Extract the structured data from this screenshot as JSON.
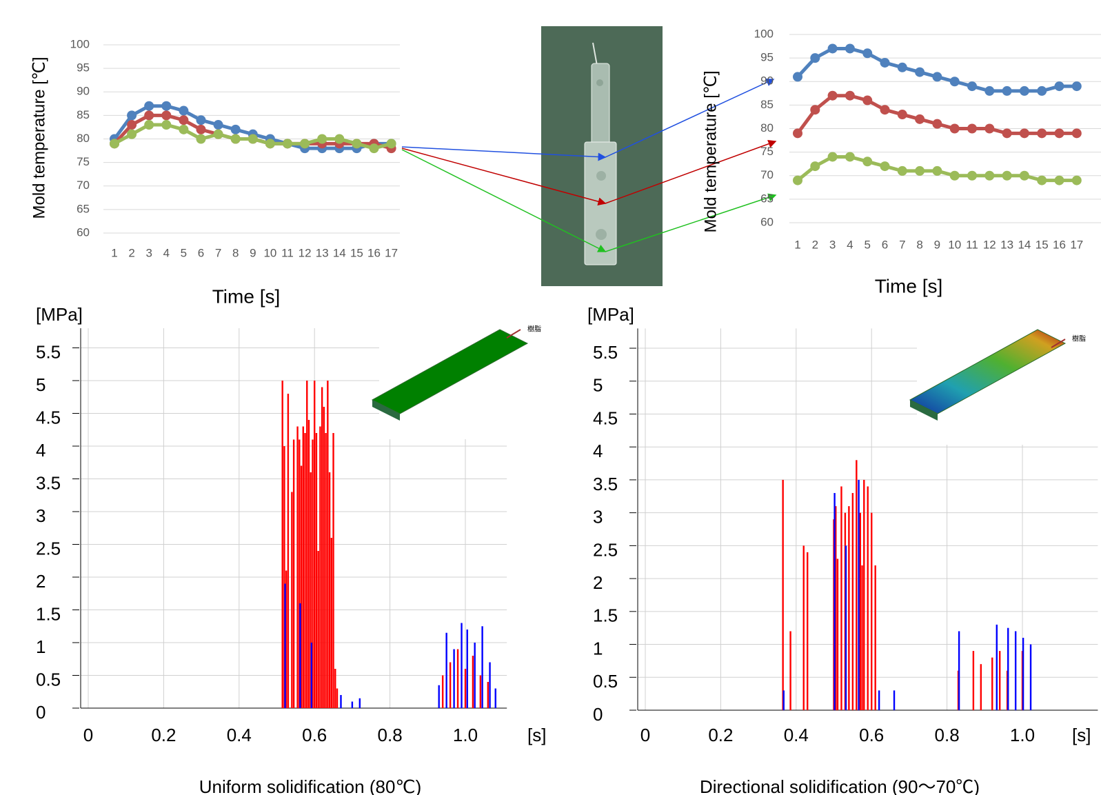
{
  "chart_data": [
    {
      "type": "line",
      "ylabel": "Mold temperature [℃]",
      "xlabel": "Time [s]",
      "categories": [
        "1",
        "2",
        "3",
        "4",
        "5",
        "6",
        "7",
        "8",
        "9",
        "10",
        "11",
        "12",
        "13",
        "14",
        "15",
        "16",
        "17"
      ],
      "ylim": [
        60,
        100
      ],
      "yticks": [
        60,
        65,
        70,
        75,
        80,
        85,
        90,
        95,
        100
      ],
      "grid": true,
      "series": [
        {
          "color": "#4f81bd",
          "values": [
            80,
            85,
            87,
            87,
            86,
            84,
            83,
            82,
            81,
            80,
            79,
            78,
            78,
            78,
            78,
            79,
            79
          ]
        },
        {
          "color": "#c0504d",
          "values": [
            79,
            83,
            85,
            85,
            84,
            82,
            81,
            80,
            80,
            79,
            79,
            79,
            79,
            79,
            79,
            79,
            78
          ]
        },
        {
          "color": "#9bbb59",
          "values": [
            79,
            81,
            83,
            83,
            82,
            80,
            81,
            80,
            80,
            79,
            79,
            79,
            80,
            80,
            79,
            78,
            79
          ]
        }
      ]
    },
    {
      "type": "line",
      "ylabel": "Mold temperature [℃]",
      "xlabel": "Time [s]",
      "categories": [
        "1",
        "2",
        "3",
        "4",
        "5",
        "6",
        "7",
        "8",
        "9",
        "10",
        "11",
        "12",
        "13",
        "14",
        "15",
        "16",
        "17"
      ],
      "ylim": [
        60,
        100
      ],
      "yticks": [
        60,
        65,
        70,
        75,
        80,
        85,
        90,
        95,
        100
      ],
      "grid": true,
      "series": [
        {
          "color": "#4f81bd",
          "values": [
            91,
            95,
            97,
            97,
            96,
            94,
            93,
            92,
            91,
            90,
            89,
            88,
            88,
            88,
            88,
            89,
            89
          ]
        },
        {
          "color": "#c0504d",
          "values": [
            79,
            84,
            87,
            87,
            86,
            84,
            83,
            82,
            81,
            80,
            80,
            80,
            79,
            79,
            79,
            79,
            79
          ]
        },
        {
          "color": "#9bbb59",
          "values": [
            69,
            72,
            74,
            74,
            73,
            72,
            71,
            71,
            71,
            70,
            70,
            70,
            70,
            70,
            69,
            69,
            69
          ]
        }
      ]
    },
    {
      "type": "spike",
      "ylabel": "[MPa]",
      "xlabel": "[s]",
      "caption": "Uniform solidification (80℃)",
      "xlim": [
        -0.02,
        1.11
      ],
      "ylim": [
        0,
        5.8
      ],
      "xticks": [
        0,
        0.2,
        0.4,
        0.6,
        0.8,
        {
          "value": 1,
          "label": "1.0"
        }
      ],
      "yticks": [
        0,
        0.5,
        1,
        1.5,
        2,
        2.5,
        3,
        3.5,
        4,
        4.5,
        5,
        5.5
      ],
      "grid": true,
      "series": [
        {
          "color": "#ff0000",
          "x": [
            0.515,
            0.52,
            0.525,
            0.53,
            0.54,
            0.545,
            0.555,
            0.56,
            0.565,
            0.57,
            0.575,
            0.58,
            0.585,
            0.59,
            0.595,
            0.6,
            0.605,
            0.61,
            0.615,
            0.62,
            0.625,
            0.63,
            0.635,
            0.64,
            0.645,
            0.65,
            0.655,
            0.66,
            0.94,
            0.96,
            0.98,
            1.0,
            1.02,
            1.04,
            1.06
          ],
          "values": [
            5.0,
            4.0,
            2.1,
            4.8,
            3.3,
            4.1,
            4.3,
            4.1,
            3.7,
            4.3,
            4.2,
            5.0,
            4.4,
            3.6,
            4.1,
            5.0,
            4.2,
            2.4,
            4.3,
            4.9,
            4.6,
            4.2,
            5.0,
            3.6,
            2.6,
            4.2,
            0.6,
            0.3,
            0.5,
            0.7,
            0.9,
            0.6,
            0.8,
            0.5,
            0.4
          ]
        },
        {
          "color": "#0000ff",
          "x": [
            0.522,
            0.562,
            0.592,
            0.67,
            0.7,
            0.72,
            0.93,
            0.95,
            0.97,
            0.99,
            1.005,
            1.025,
            1.045,
            1.065,
            1.08
          ],
          "values": [
            1.9,
            1.6,
            1.0,
            0.2,
            0.1,
            0.15,
            0.35,
            1.15,
            0.9,
            1.3,
            1.2,
            1.0,
            1.25,
            0.7,
            0.3
          ]
        }
      ]
    },
    {
      "type": "spike",
      "ylabel": "[MPa]",
      "xlabel": "[s]",
      "caption": "Directional solidification (90～70℃)",
      "xlim": [
        -0.02,
        1.2
      ],
      "ylim": [
        0,
        5.8
      ],
      "xticks": [
        0,
        0.2,
        0.4,
        0.6,
        0.8,
        {
          "value": 1,
          "label": "1.0"
        }
      ],
      "yticks": [
        0,
        0.5,
        1,
        1.5,
        2,
        2.5,
        3,
        3.5,
        4,
        4.5,
        5,
        5.5
      ],
      "grid": true,
      "series": [
        {
          "color": "#ff0000",
          "x": [
            0.365,
            0.385,
            0.42,
            0.43,
            0.5,
            0.505,
            0.51,
            0.52,
            0.53,
            0.54,
            0.55,
            0.56,
            0.57,
            0.575,
            0.58,
            0.59,
            0.6,
            0.61,
            0.83,
            0.87,
            0.89,
            0.92,
            0.94,
            0.96,
            1.0
          ],
          "values": [
            3.5,
            1.2,
            2.5,
            2.4,
            2.9,
            3.1,
            2.3,
            3.4,
            3.0,
            3.1,
            3.3,
            3.8,
            3.0,
            2.2,
            3.5,
            3.4,
            3.0,
            2.2,
            0.6,
            0.9,
            0.7,
            0.8,
            0.9,
            0.6,
            0.9
          ]
        },
        {
          "color": "#0000ff",
          "x": [
            0.367,
            0.502,
            0.532,
            0.566,
            0.62,
            0.66,
            0.832,
            0.932,
            0.962,
            0.982,
            1.002,
            1.022
          ],
          "values": [
            0.3,
            3.3,
            2.5,
            3.5,
            0.3,
            0.3,
            1.2,
            1.3,
            1.25,
            1.2,
            1.1,
            1.0
          ]
        }
      ]
    }
  ],
  "inset_labels": [
    "樹脂",
    "樹脂"
  ]
}
